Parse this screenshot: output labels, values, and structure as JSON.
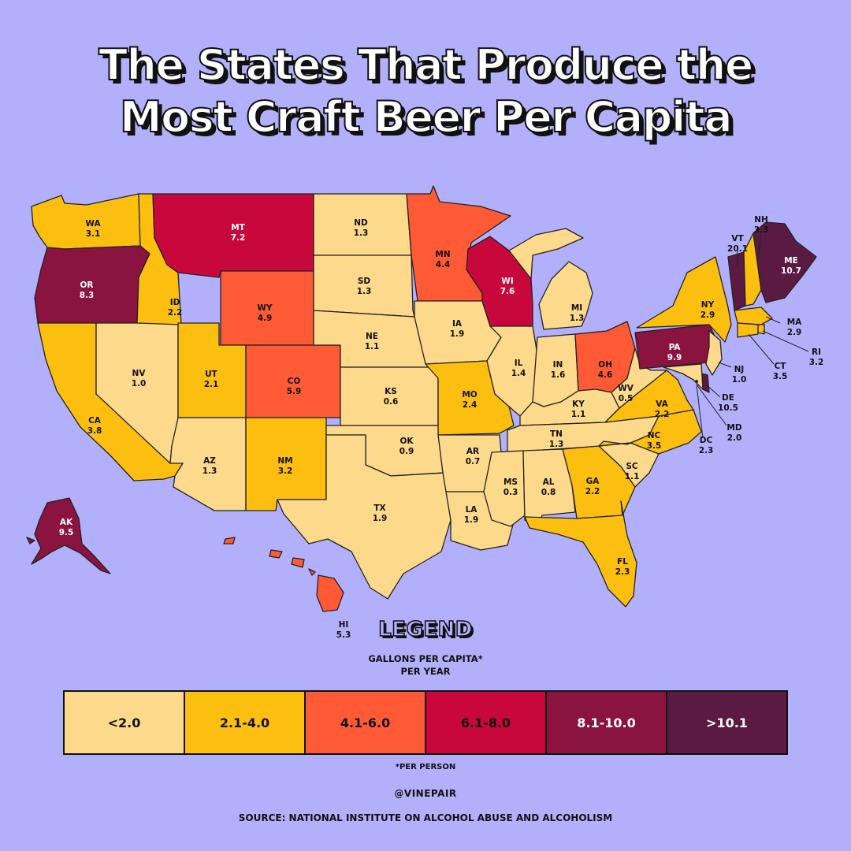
{
  "title": {
    "line1": "The States That Produce the",
    "line2": "Most Craft Beer Per Capita"
  },
  "legend": {
    "title": "LEGEND",
    "subtitle_line1": "GALLONS PER CAPITA*",
    "subtitle_line2": "PER YEAR",
    "bins": [
      {
        "label": "<2.0",
        "color": "#fdd98b",
        "text_color": "#111111"
      },
      {
        "label": "2.1-4.0",
        "color": "#fdbf0f",
        "text_color": "#111111"
      },
      {
        "label": "4.1-6.0",
        "color": "#fd5a35",
        "text_color": "#111111"
      },
      {
        "label": "6.1-8.0",
        "color": "#c8073c",
        "text_color": "#111111"
      },
      {
        "label": "8.1-10.0",
        "color": "#8a1340",
        "text_color": "#ffffff"
      },
      {
        "label": ">10.1",
        "color": "#5a1a42",
        "text_color": "#ffffff"
      }
    ]
  },
  "footnote": "*PER PERSON",
  "handle": "@VINEPAIR",
  "source": "SOURCE: NATIONAL INSTITUTE ON ALCOHOL ABUSE AND ALCOHOLISM",
  "states": [
    {
      "abbr": "WA",
      "value": "3.1"
    },
    {
      "abbr": "OR",
      "value": "8.3"
    },
    {
      "abbr": "CA",
      "value": "3.8"
    },
    {
      "abbr": "NV",
      "value": "1.0"
    },
    {
      "abbr": "ID",
      "value": "2.2"
    },
    {
      "abbr": "MT",
      "value": "7.2"
    },
    {
      "abbr": "WY",
      "value": "4.9"
    },
    {
      "abbr": "UT",
      "value": "2.1"
    },
    {
      "abbr": "AZ",
      "value": "1.3"
    },
    {
      "abbr": "CO",
      "value": "5.9"
    },
    {
      "abbr": "NM",
      "value": "3.2"
    },
    {
      "abbr": "ND",
      "value": "1.3"
    },
    {
      "abbr": "SD",
      "value": "1.3"
    },
    {
      "abbr": "NE",
      "value": "1.1"
    },
    {
      "abbr": "KS",
      "value": "0.6"
    },
    {
      "abbr": "OK",
      "value": "0.9"
    },
    {
      "abbr": "TX",
      "value": "1.9"
    },
    {
      "abbr": "MN",
      "value": "4.4"
    },
    {
      "abbr": "IA",
      "value": "1.9"
    },
    {
      "abbr": "MO",
      "value": "2.4"
    },
    {
      "abbr": "AR",
      "value": "0.7"
    },
    {
      "abbr": "LA",
      "value": "1.9"
    },
    {
      "abbr": "WI",
      "value": "7.6"
    },
    {
      "abbr": "IL",
      "value": "1.4"
    },
    {
      "abbr": "MI",
      "value": "1.3"
    },
    {
      "abbr": "IN",
      "value": "1.6"
    },
    {
      "abbr": "OH",
      "value": "4.6"
    },
    {
      "abbr": "KY",
      "value": "1.1"
    },
    {
      "abbr": "TN",
      "value": "1.3"
    },
    {
      "abbr": "MS",
      "value": "0.3"
    },
    {
      "abbr": "AL",
      "value": "0.8"
    },
    {
      "abbr": "GA",
      "value": "2.2"
    },
    {
      "abbr": "FL",
      "value": "2.3"
    },
    {
      "abbr": "SC",
      "value": "1.1"
    },
    {
      "abbr": "NC",
      "value": "3.5"
    },
    {
      "abbr": "VA",
      "value": "2.2"
    },
    {
      "abbr": "WV",
      "value": "0.5"
    },
    {
      "abbr": "PA",
      "value": "9.9"
    },
    {
      "abbr": "NY",
      "value": "2.9"
    },
    {
      "abbr": "VT",
      "value": "20.1"
    },
    {
      "abbr": "NH",
      "value": "3.3"
    },
    {
      "abbr": "ME",
      "value": "10.7"
    },
    {
      "abbr": "MA",
      "value": "2.9"
    },
    {
      "abbr": "RI",
      "value": "3.2"
    },
    {
      "abbr": "CT",
      "value": "3.5"
    },
    {
      "abbr": "NJ",
      "value": "1.0"
    },
    {
      "abbr": "DE",
      "value": "10.5"
    },
    {
      "abbr": "MD",
      "value": "2.0"
    },
    {
      "abbr": "DC",
      "value": "2.3"
    },
    {
      "abbr": "AK",
      "value": "9.5"
    },
    {
      "abbr": "HI",
      "value": "5.3"
    }
  ]
}
